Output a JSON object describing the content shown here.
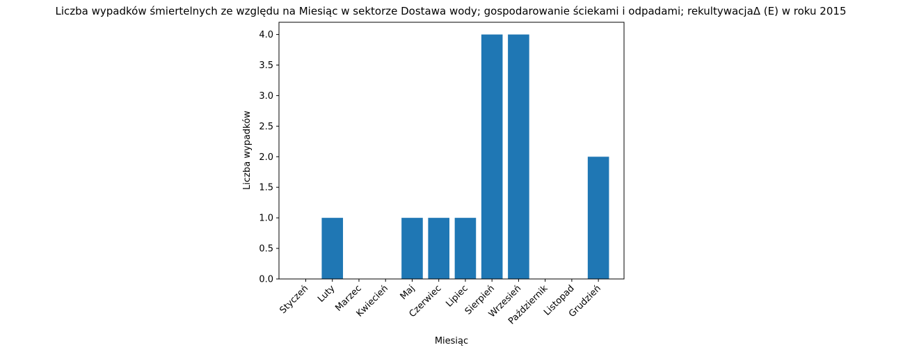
{
  "chart_data": {
    "type": "bar",
    "title": "Liczba wypadków śmiertelnych ze względu na Miesiąc w sektorze Dostawa wody; gospodarowanie ściekami i odpadami;  rekultywacjaΔ  (E) w roku 2015",
    "xlabel": "Miesiąc",
    "ylabel": "Liczba wypadków",
    "categories": [
      "Styczeń",
      "Luty",
      "Marzec",
      "Kwiecień",
      "Maj",
      "Czerwiec",
      "Lipiec",
      "Sierpień",
      "Wrzesień",
      "Październik",
      "Listopad",
      "Grudzień"
    ],
    "values": [
      0,
      1,
      0,
      0,
      1,
      1,
      1,
      4,
      4,
      0,
      0,
      2
    ],
    "ylim": [
      0,
      4.2
    ],
    "yticks": [
      "0.0",
      "0.5",
      "1.0",
      "1.5",
      "2.0",
      "2.5",
      "3.0",
      "3.5",
      "4.0"
    ],
    "grid": false,
    "legend": "none",
    "bar_color": "#1f77b4"
  }
}
